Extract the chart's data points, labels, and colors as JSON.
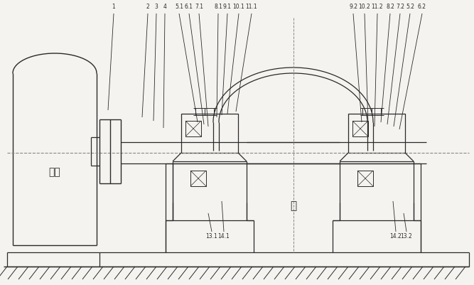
{
  "bg_color": "#f5f3ef",
  "line_color": "#2a2a2a",
  "fig_width": 6.67,
  "fig_height": 4.01,
  "text_motor": "电机",
  "text_pump": "橇",
  "labels_left": [
    [
      "1",
      160,
      14,
      152,
      155
    ],
    [
      "2",
      208,
      14,
      200,
      165
    ],
    [
      "3",
      220,
      14,
      216,
      170
    ],
    [
      "4",
      232,
      14,
      230,
      180
    ],
    [
      "5.1",
      252,
      14,
      278,
      172
    ],
    [
      "6.1",
      266,
      14,
      287,
      175
    ],
    [
      "7.1",
      280,
      14,
      293,
      178
    ],
    [
      "8.1",
      307,
      14,
      305,
      165
    ],
    [
      "9.1",
      320,
      14,
      312,
      162
    ],
    [
      "10.1",
      336,
      14,
      320,
      160
    ],
    [
      "11.1",
      354,
      14,
      332,
      157
    ]
  ],
  "labels_right": [
    [
      "9.2",
      497,
      14,
      509,
      172
    ],
    [
      "10.2",
      513,
      14,
      518,
      175
    ],
    [
      "11.2",
      531,
      14,
      527,
      178
    ],
    [
      "8.2",
      549,
      14,
      536,
      172
    ],
    [
      "7.2",
      563,
      14,
      545,
      175
    ],
    [
      "5.2",
      577,
      14,
      554,
      178
    ],
    [
      "6.2",
      594,
      14,
      562,
      182
    ]
  ],
  "labels_bot_left": [
    [
      "13.1",
      298,
      328,
      293,
      300
    ],
    [
      "14.1",
      315,
      328,
      312,
      283
    ]
  ],
  "labels_bot_right": [
    [
      "14.2",
      557,
      328,
      553,
      283
    ],
    [
      "13.2",
      572,
      328,
      568,
      300
    ]
  ]
}
